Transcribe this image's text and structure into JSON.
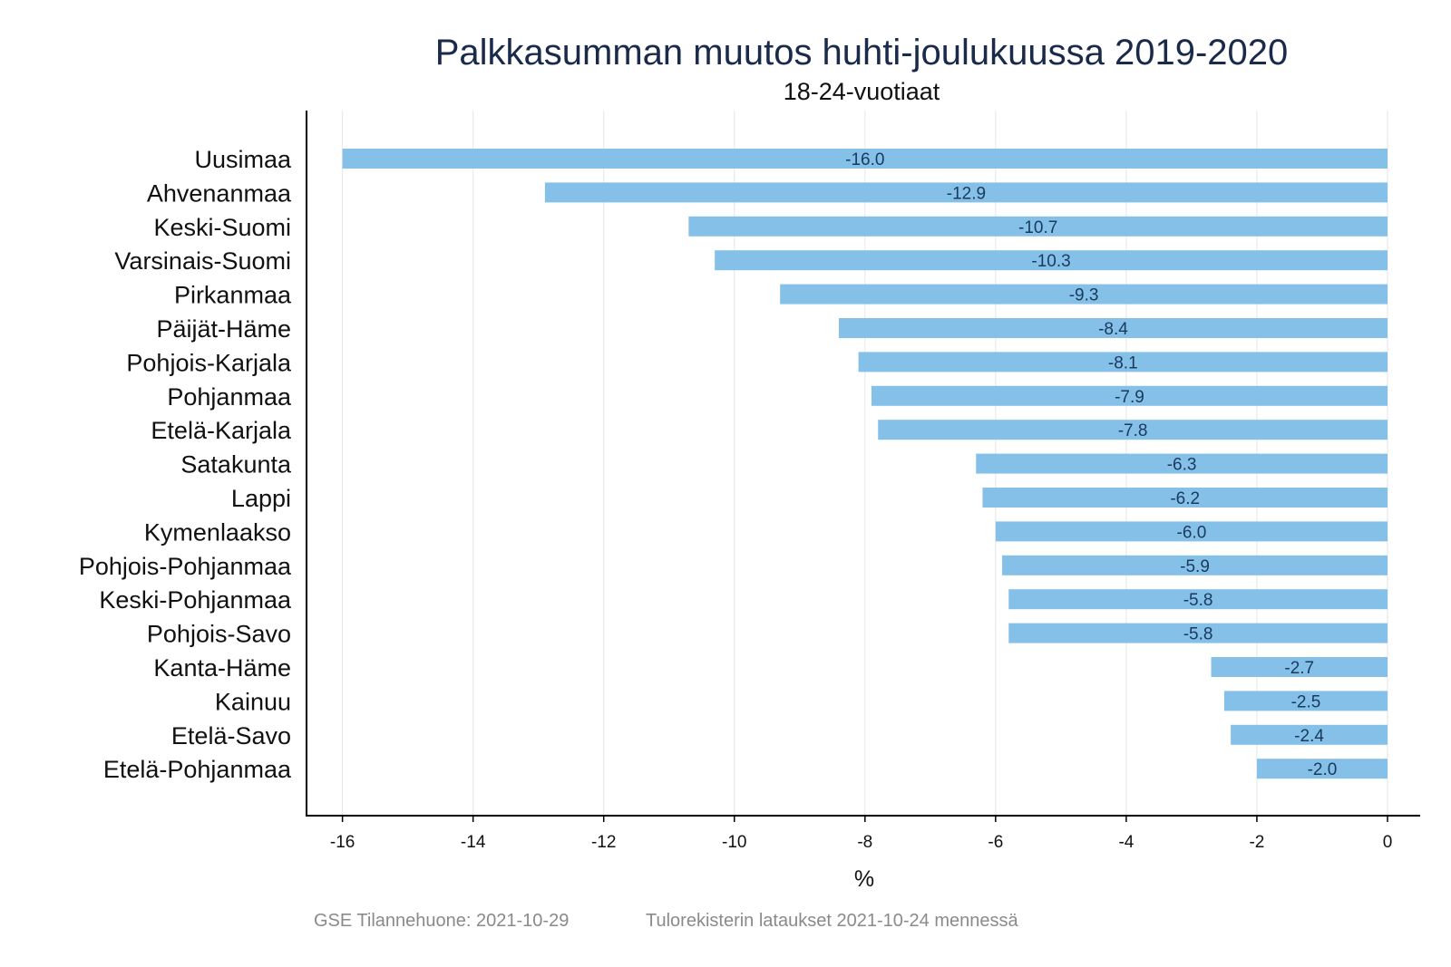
{
  "chart_data": {
    "type": "bar",
    "orientation": "horizontal",
    "title": "Palkkasumman muutos huhti-joulukuussa 2019-2020",
    "subtitle": "18-24-vuotiaat",
    "xlabel": "%",
    "ylabel": "",
    "xlim": [
      -16.55,
      0.5
    ],
    "xticks": [
      -16,
      -14,
      -12,
      -10,
      -8,
      -6,
      -4,
      -2,
      0
    ],
    "grid": true,
    "legend": "none",
    "bar_color": "#85c0e9",
    "categories": [
      "Uusimaa",
      "Ahvenanmaa",
      "Keski-Suomi",
      "Varsinais-Suomi",
      "Pirkanmaa",
      "Päijät-Häme",
      "Pohjois-Karjala",
      "Pohjanmaa",
      "Etelä-Karjala",
      "Satakunta",
      "Lappi",
      "Kymenlaakso",
      "Pohjois-Pohjanmaa",
      "Keski-Pohjanmaa",
      "Pohjois-Savo",
      "Kanta-Häme",
      "Kainuu",
      "Etelä-Savo",
      "Etelä-Pohjanmaa"
    ],
    "values": [
      -16.0,
      -12.9,
      -10.7,
      -10.3,
      -9.3,
      -8.4,
      -8.1,
      -7.9,
      -7.8,
      -6.3,
      -6.2,
      -6.0,
      -5.9,
      -5.8,
      -5.8,
      -2.7,
      -2.5,
      -2.4,
      -2.0
    ],
    "value_labels": [
      "-16.0",
      "-12.9",
      "-10.7",
      "-10.3",
      "-9.3",
      "-8.4",
      "-8.1",
      "-7.9",
      "-7.8",
      "-6.3",
      "-6.2",
      "-6.0",
      "-5.9",
      "-5.8",
      "-5.8",
      "-2.7",
      "-2.5",
      "-2.4",
      "-2.0"
    ]
  },
  "footer": {
    "source": "GSE Tilannehuone: 2021-10-29",
    "note": "Tulorekisterin lataukset 2021-10-24 mennessä"
  }
}
